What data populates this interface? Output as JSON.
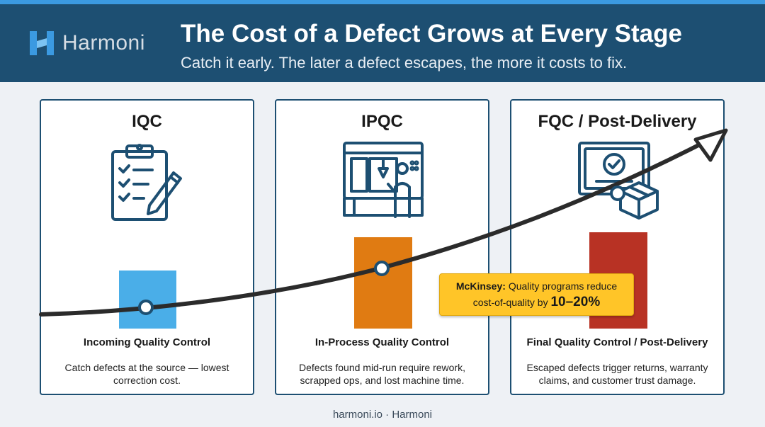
{
  "brand": {
    "name": "Harmoni",
    "icon": "harmoni-logo-icon"
  },
  "header": {
    "title": "The Cost of a Defect Grows at Every Stage",
    "subtitle": "Catch it early. The later a defect escapes, the more it costs to fix."
  },
  "stages": [
    {
      "title": "IQC",
      "icon": "clipboard-checklist-icon",
      "label": "Incoming Quality Control",
      "description": "Catch defects at the source — lowest correction cost.",
      "color": "#4aaee8",
      "relative_cost": 1
    },
    {
      "title": "IPQC",
      "icon": "cnc-machine-operator-icon",
      "label": "In-Process Quality Control",
      "description": "Defects found mid-run require rework, scrapped ops, and lost machine time.",
      "color": "#e07b12",
      "relative_cost": 2
    },
    {
      "title": "FQC / Post-Delivery",
      "icon": "certificate-package-icon",
      "label": "Final Quality Control / Post-Delivery",
      "description": "Escaped defects trigger returns, warranty claims, and customer trust damage.",
      "color": "#b83224",
      "relative_cost": 2.1
    }
  ],
  "callout": {
    "source": "McKinsey:",
    "text": "Quality programs reduce",
    "text2": "cost-of-quality by",
    "value": "10–20%",
    "color": "#ffc528"
  },
  "footer": "harmoni.io · Harmoni"
}
